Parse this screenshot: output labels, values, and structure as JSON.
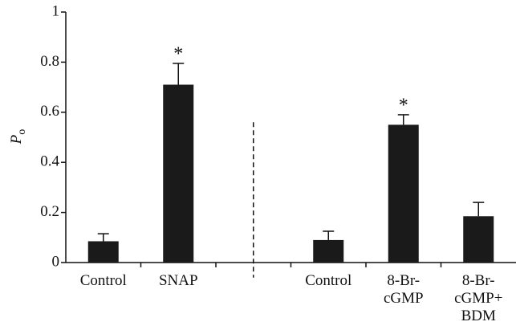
{
  "chart_data": {
    "type": "bar",
    "y_label": {
      "main": "P",
      "sub": "o"
    },
    "categories": [
      "Control",
      "SNAP",
      null,
      "Control",
      "8-Br-\ncGMP",
      "8-Br-\ncGMP+\nBDM"
    ],
    "values": [
      0.085,
      0.71,
      null,
      0.09,
      0.55,
      0.185
    ],
    "errors": [
      0.03,
      0.085,
      null,
      0.035,
      0.04,
      0.055
    ],
    "markers": [
      null,
      "*",
      null,
      null,
      "*",
      null
    ],
    "color": "#1a1a1a",
    "ylim": [
      0,
      1
    ],
    "yticks": [
      0,
      0.2,
      0.4,
      0.6,
      0.8,
      1
    ]
  }
}
